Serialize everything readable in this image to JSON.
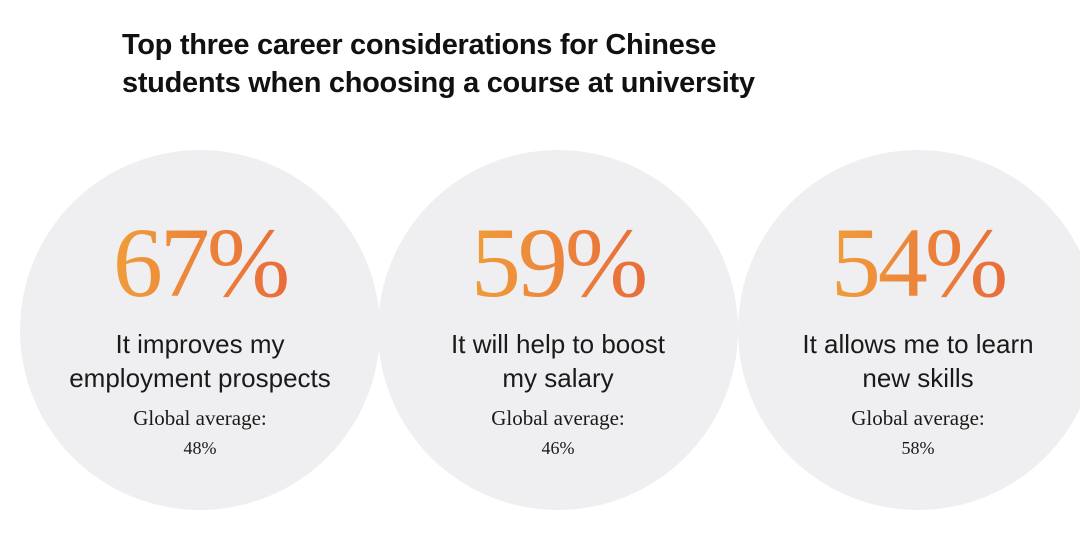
{
  "title": "Top three career considerations for Chinese students when choosing a course at university",
  "items": [
    {
      "value": "67%",
      "description_lines": [
        "It improves my",
        "employment prospects"
      ],
      "global_label": "Global average:",
      "global_value": "48%"
    },
    {
      "value": "59%",
      "description_lines": [
        "It will help to boost",
        "my salary"
      ],
      "global_label": "Global average:",
      "global_value": "46%"
    },
    {
      "value": "54%",
      "description_lines": [
        "It allows me to learn",
        "new skills"
      ],
      "global_label": "Global average:",
      "global_value": "58%"
    }
  ]
}
